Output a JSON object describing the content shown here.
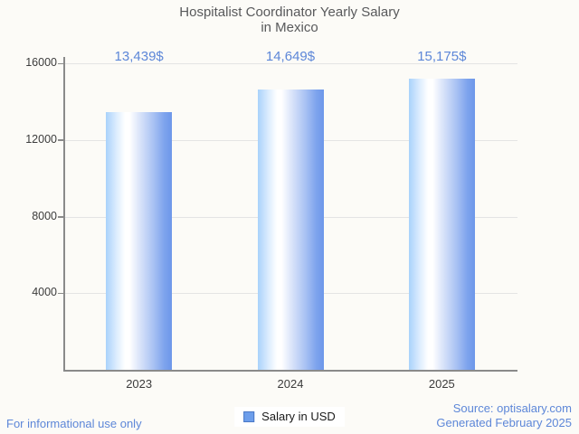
{
  "title": {
    "line1": "Hospitalist Coordinator Yearly Salary",
    "line2": "in Mexico"
  },
  "chart_data": {
    "type": "bar",
    "categories": [
      "2023",
      "2024",
      "2025"
    ],
    "values": [
      13439,
      14649,
      15175
    ],
    "value_labels": [
      "13,439$",
      "14,649$",
      "15,175$"
    ],
    "y_ticks": [
      4000,
      8000,
      12000,
      16000
    ],
    "ylim": [
      0,
      16000
    ],
    "title": "Hospitalist Coordinator Yearly Salary in Mexico",
    "xlabel": "",
    "ylabel": "",
    "legend_entries": [
      "Salary in USD"
    ],
    "legend_position": "bottom-center",
    "grid": "horizontal-on",
    "bar_gradient": [
      "#a9d2fb",
      "#ffffff",
      "#6d97ea"
    ]
  },
  "legend": {
    "label": "Salary in USD",
    "swatch_color": "#6d9eeb"
  },
  "footer": {
    "disclaimer": "For informational use only",
    "source_line1": "Source: optisalary.com",
    "source_line2": "Generated February 2025"
  },
  "colors": {
    "background": "#fcfbf7",
    "accent_text": "#5d87d8",
    "title_text": "#58595b",
    "axis": "#8a8a8a",
    "gridline": "#e4e4e4",
    "tick_label": "#3c3c3c"
  }
}
